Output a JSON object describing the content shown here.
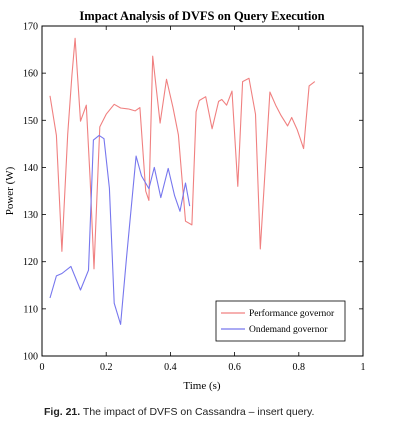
{
  "chart_data": {
    "type": "line",
    "title": "Impact Analysis of DVFS on Query Execution",
    "xlabel": "Time (s)",
    "ylabel": "Power (W)",
    "xlim": [
      0,
      1
    ],
    "ylim": [
      100,
      170
    ],
    "xticks": [
      0,
      0.2,
      0.4,
      0.6,
      0.8,
      1
    ],
    "xtick_labels": [
      "0",
      "0.2",
      "0.4",
      "0.6",
      "0.8",
      "1"
    ],
    "yticks": [
      100,
      110,
      120,
      130,
      140,
      150,
      160,
      170
    ],
    "ytick_labels": [
      "100",
      "110",
      "120",
      "130",
      "140",
      "150",
      "160",
      "170"
    ],
    "grid": false,
    "legend_position": "bottom-right",
    "series": [
      {
        "name": "Performance governor",
        "color": "#f08080",
        "points": [
          [
            0.025,
            155.2
          ],
          [
            0.045,
            146.8
          ],
          [
            0.062,
            122.2
          ],
          [
            0.08,
            147.0
          ],
          [
            0.093,
            159.5
          ],
          [
            0.103,
            167.4
          ],
          [
            0.12,
            149.8
          ],
          [
            0.138,
            153.2
          ],
          [
            0.15,
            137.2
          ],
          [
            0.162,
            118.5
          ],
          [
            0.18,
            148.6
          ],
          [
            0.2,
            151.3
          ],
          [
            0.225,
            153.4
          ],
          [
            0.245,
            152.6
          ],
          [
            0.27,
            152.4
          ],
          [
            0.29,
            152.0
          ],
          [
            0.305,
            152.7
          ],
          [
            0.323,
            135.0
          ],
          [
            0.333,
            133.0
          ],
          [
            0.345,
            163.6
          ],
          [
            0.368,
            149.4
          ],
          [
            0.388,
            158.7
          ],
          [
            0.408,
            152.7
          ],
          [
            0.425,
            146.9
          ],
          [
            0.447,
            128.6
          ],
          [
            0.467,
            127.8
          ],
          [
            0.48,
            151.8
          ],
          [
            0.49,
            154.2
          ],
          [
            0.51,
            155.0
          ],
          [
            0.53,
            148.2
          ],
          [
            0.55,
            154.0
          ],
          [
            0.56,
            154.4
          ],
          [
            0.575,
            153.2
          ],
          [
            0.592,
            156.2
          ],
          [
            0.61,
            136.0
          ],
          [
            0.625,
            158.2
          ],
          [
            0.645,
            158.9
          ],
          [
            0.665,
            151.3
          ],
          [
            0.68,
            122.7
          ],
          [
            0.71,
            156.0
          ],
          [
            0.728,
            153.2
          ],
          [
            0.745,
            151.0
          ],
          [
            0.765,
            148.8
          ],
          [
            0.778,
            150.6
          ],
          [
            0.795,
            148.0
          ],
          [
            0.805,
            146.0
          ],
          [
            0.815,
            144.0
          ],
          [
            0.832,
            157.3
          ],
          [
            0.85,
            158.2
          ]
        ]
      },
      {
        "name": "Ondemand governor",
        "color": "#7777ee",
        "points": [
          [
            0.025,
            112.3
          ],
          [
            0.045,
            117.0
          ],
          [
            0.062,
            117.5
          ],
          [
            0.09,
            119.0
          ],
          [
            0.12,
            114.0
          ],
          [
            0.145,
            118.2
          ],
          [
            0.16,
            145.8
          ],
          [
            0.178,
            146.8
          ],
          [
            0.193,
            146.1
          ],
          [
            0.21,
            135.6
          ],
          [
            0.225,
            111.2
          ],
          [
            0.245,
            106.7
          ],
          [
            0.263,
            120.6
          ],
          [
            0.293,
            142.4
          ],
          [
            0.31,
            138.2
          ],
          [
            0.333,
            135.5
          ],
          [
            0.35,
            140.0
          ],
          [
            0.37,
            133.6
          ],
          [
            0.393,
            139.8
          ],
          [
            0.413,
            134.0
          ],
          [
            0.43,
            130.7
          ],
          [
            0.447,
            136.7
          ],
          [
            0.46,
            131.8
          ]
        ]
      }
    ]
  },
  "caption": {
    "label": "Fig. 21.",
    "text": "The impact of DVFS on Cassandra – insert query."
  }
}
